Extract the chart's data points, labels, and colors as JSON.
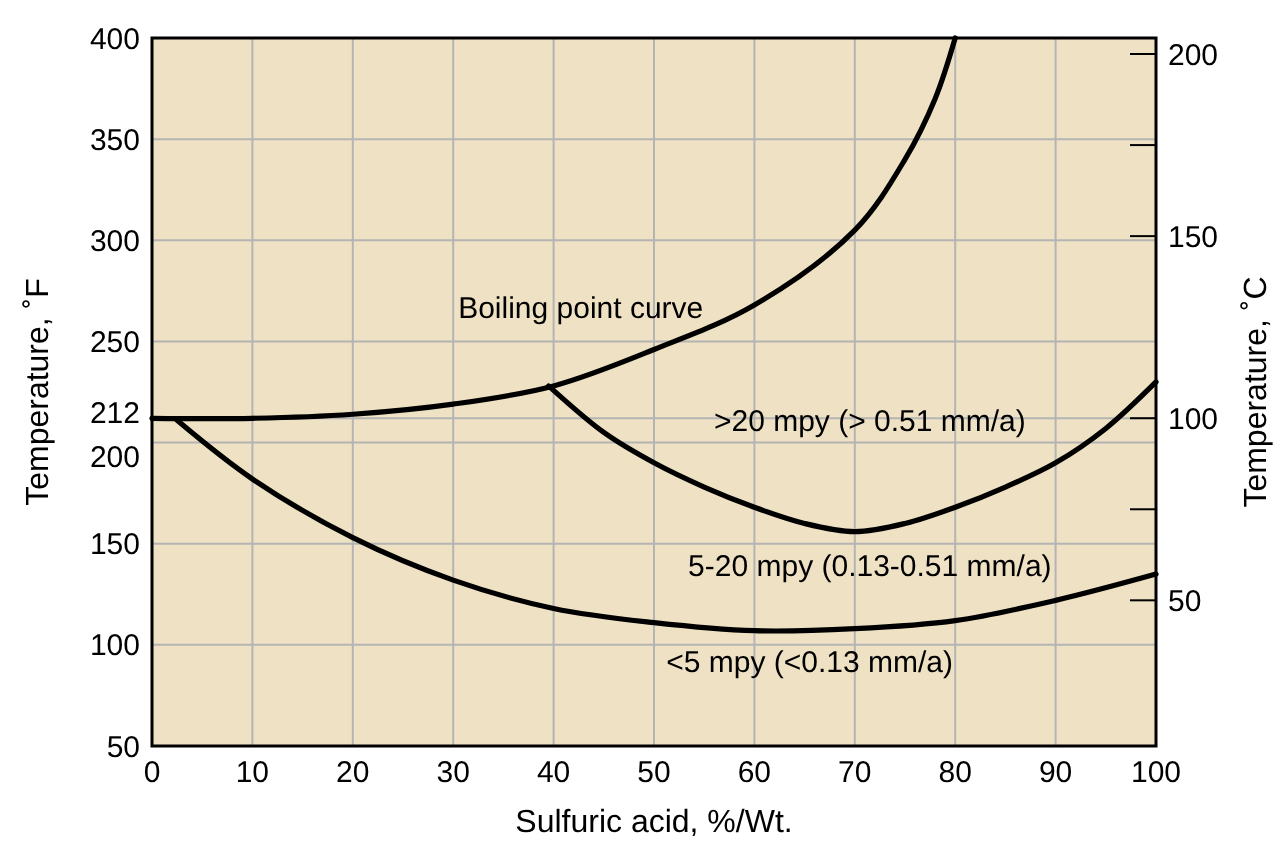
{
  "chart_data": {
    "type": "line",
    "xlabel": "Sulfuric acid, %/Wt.",
    "ylabel": "Temperature, ˚F",
    "y2label": "Temperature, ˚C",
    "xlim": [
      0,
      100
    ],
    "xticks": [
      0,
      10,
      20,
      30,
      40,
      50,
      60,
      70,
      80,
      90,
      100
    ],
    "ylim": [
      50,
      400
    ],
    "yticks": [
      50,
      100,
      150,
      200,
      212,
      250,
      300,
      350,
      400
    ],
    "y2lim": [
      10,
      204.4
    ],
    "y2ticks": [
      {
        "value": 50,
        "label": "50"
      },
      {
        "value": 75,
        "label": null
      },
      {
        "value": 100,
        "label": "100"
      },
      {
        "value": 150,
        "label": "150"
      },
      {
        "value": 175,
        "label": null
      },
      {
        "value": 200,
        "label": "200"
      }
    ],
    "grid": true,
    "marker": "none",
    "line_style": "solid",
    "series": [
      {
        "color": "#000000",
        "x": [
          0,
          10,
          20,
          30,
          40,
          50,
          60,
          70,
          75,
          78,
          80
        ],
        "values": [
          212,
          212,
          214,
          219,
          228,
          246,
          268,
          305,
          340,
          370,
          400
        ]
      },
      {
        "color": "#000000",
        "x": [
          39.5,
          45,
          50,
          55,
          60,
          65,
          70,
          75,
          80,
          85,
          90,
          95,
          100
        ],
        "values": [
          228,
          205,
          190,
          178,
          168,
          160,
          156,
          160,
          168,
          178,
          190,
          207,
          230
        ]
      },
      {
        "color": "#000000",
        "x": [
          2.5,
          10,
          20,
          30,
          40,
          50,
          60,
          70,
          80,
          90,
          100
        ],
        "values": [
          211,
          182,
          153,
          132,
          118,
          111,
          107,
          108,
          112,
          122,
          135
        ]
      }
    ],
    "annotations": [
      "Boiling point curve",
      ">20 mpy (> 0.51 mm/a)",
      "5-20 mpy (0.13-0.51 mm/a)",
      "<5 mpy (<0.13 mm/a)"
    ]
  }
}
